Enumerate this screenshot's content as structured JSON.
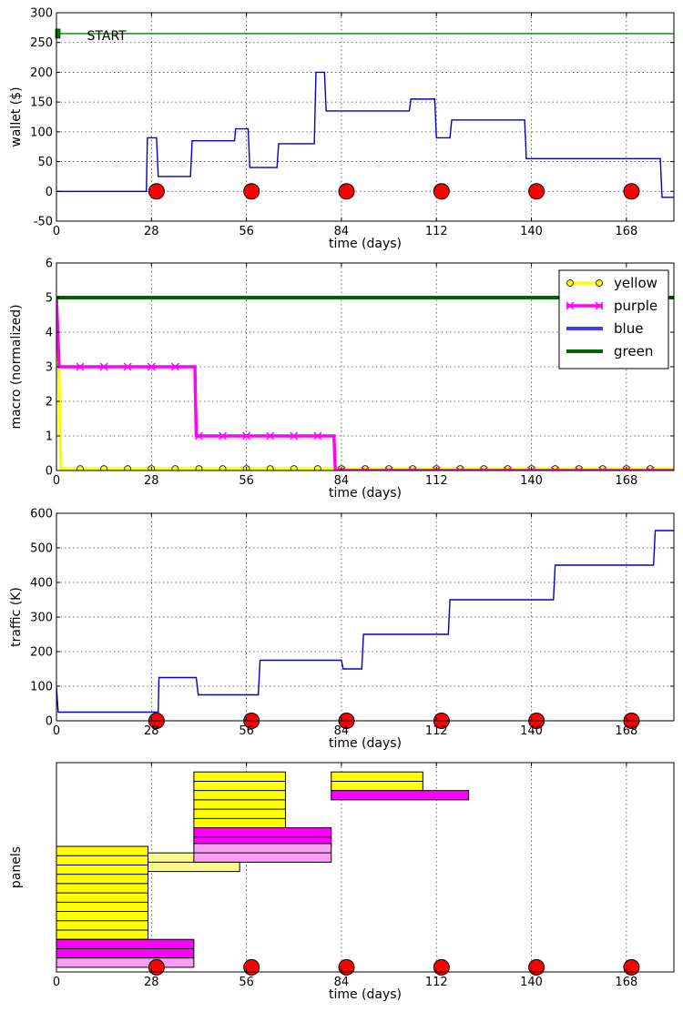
{
  "chart_data": [
    {
      "type": "line",
      "name_key": "wallet",
      "xlabel": "time (days)",
      "ylabel": "wallet ($)",
      "xlim": [
        0,
        182
      ],
      "ylim": [
        -50,
        300
      ],
      "xticks": [
        0,
        28,
        56,
        84,
        112,
        140,
        168
      ],
      "yticks": [
        -50,
        0,
        50,
        100,
        150,
        200,
        250,
        300
      ],
      "grid": true,
      "annotation": {
        "text": "START",
        "x": 9,
        "y": 262
      },
      "start_marker": {
        "x": 0.3,
        "y": 265,
        "color": "#007700"
      },
      "series": [
        {
          "color": "#008000",
          "x": [
            0,
            182
          ],
          "y": [
            265,
            265
          ]
        },
        {
          "color": "#0000cc",
          "x": [
            0,
            26.5,
            26.8,
            29.5,
            30,
            39.5,
            40,
            52.5,
            52.8,
            56.5,
            57,
            62,
            62.5,
            65,
            65.5,
            76,
            76.5,
            79,
            79.5,
            88,
            88.5,
            104,
            104.5,
            111.5,
            112,
            114,
            114.5,
            116,
            116.5,
            138,
            138.5,
            178,
            178.5,
            182
          ],
          "y": [
            0,
            0,
            90,
            90,
            25,
            25,
            85,
            85,
            105,
            105,
            40,
            40,
            40,
            40,
            80,
            80,
            200,
            200,
            135,
            135,
            135,
            135,
            155,
            155,
            90,
            90,
            90,
            90,
            120,
            120,
            55,
            55,
            -10,
            -10
          ]
        }
      ],
      "events": {
        "color": "#ff0000",
        "x": [
          28,
          56,
          84,
          112,
          140,
          168
        ],
        "y": 0
      }
    },
    {
      "type": "line",
      "name_key": "macro",
      "xlabel": "time (days)",
      "ylabel": "macro (normalized)",
      "xlim": [
        0,
        182
      ],
      "ylim": [
        0,
        6
      ],
      "xticks": [
        0,
        28,
        56,
        84,
        112,
        140,
        168
      ],
      "yticks": [
        0,
        1,
        2,
        3,
        4,
        5,
        6
      ],
      "grid": true,
      "legend_position": "top-right",
      "series": [
        {
          "name": "yellow",
          "color": "#ffff00",
          "marker": "circle",
          "x": [
            0,
            0.7,
            1.3,
            182
          ],
          "y": [
            5,
            3,
            0.05,
            0.05
          ],
          "marker_x": [
            7,
            14,
            21,
            28,
            35,
            42,
            49,
            56,
            63,
            70,
            77,
            84,
            91,
            98,
            105,
            112,
            119,
            126,
            133,
            140,
            147,
            154,
            161,
            168,
            175
          ]
        },
        {
          "name": "purple",
          "color": "#ff00ff",
          "marker": "x",
          "x": [
            0,
            0.8,
            40.8,
            41.2,
            81.8,
            82.2,
            182
          ],
          "y": [
            5,
            3,
            3,
            1,
            1,
            0,
            0
          ],
          "marker_x": [
            7,
            14,
            21,
            28,
            35,
            42,
            49,
            56,
            63,
            70,
            77,
            84,
            91,
            98,
            105,
            112,
            119,
            126,
            133,
            140,
            147,
            154,
            161,
            168,
            175
          ]
        },
        {
          "name": "blue",
          "color": "#3c3cff",
          "x": [
            0,
            182
          ],
          "y": [
            5,
            5
          ]
        },
        {
          "name": "green",
          "color": "#006400",
          "x": [
            0,
            182
          ],
          "y": [
            5,
            5
          ]
        }
      ]
    },
    {
      "type": "line",
      "name_key": "traffic",
      "xlabel": "time (days)",
      "ylabel": "traffic (K)",
      "xlim": [
        0,
        182
      ],
      "ylim": [
        0,
        600
      ],
      "xticks": [
        0,
        28,
        56,
        84,
        112,
        140,
        168
      ],
      "yticks": [
        0,
        100,
        200,
        300,
        400,
        500,
        600
      ],
      "grid": true,
      "series": [
        {
          "color": "#0000cc",
          "x": [
            0,
            0.5,
            30,
            30.2,
            41.2,
            41.8,
            59.5,
            60,
            84,
            84.5,
            90,
            90.5,
            115.5,
            116,
            146.5,
            147,
            176,
            176.5,
            182
          ],
          "y": [
            100,
            25,
            25,
            125,
            125,
            75,
            75,
            175,
            175,
            150,
            150,
            250,
            250,
            350,
            350,
            450,
            450,
            550,
            550
          ]
        }
      ],
      "events": {
        "color": "#ff0000",
        "x": [
          28,
          56,
          84,
          112,
          140,
          168
        ],
        "y": 0
      }
    },
    {
      "type": "gantt",
      "name_key": "panels",
      "xlabel": "time (days)",
      "ylabel": "panels",
      "xlim": [
        0,
        182
      ],
      "ylim": [
        -0.5,
        22
      ],
      "xticks": [
        0,
        28,
        56,
        84,
        112,
        140,
        168
      ],
      "grid": true,
      "blocks": [
        {
          "color": "#ffff00",
          "x0": 0,
          "x1": 27,
          "y0": 3,
          "rows": 10
        },
        {
          "color": "#ff00ff",
          "x0": 0,
          "x1": 40.5,
          "y0": 1,
          "rows": 2
        },
        {
          "color": "#f5a0f5",
          "x0": 0,
          "x1": 40.5,
          "y0": 0,
          "rows": 1
        },
        {
          "color": "#f8f890",
          "x0": 27,
          "x1": 54,
          "y0": 10.3,
          "rows": 2
        },
        {
          "color": "#ffff00",
          "x0": 40.5,
          "x1": 67.5,
          "y0": 15,
          "rows": 6
        },
        {
          "color": "#ff00ff",
          "x0": 40.5,
          "x1": 81,
          "y0": 13,
          "rows": 2
        },
        {
          "color": "#f5a0f5",
          "x0": 40.5,
          "x1": 81,
          "y0": 11.3,
          "rows": 2
        },
        {
          "color": "#ffff00",
          "x0": 81,
          "x1": 108,
          "y0": 19,
          "rows": 2
        },
        {
          "color": "#ff00ff",
          "x0": 81,
          "x1": 121.5,
          "y0": 18,
          "rows": 1
        }
      ],
      "events": {
        "color": "#ff0000",
        "x": [
          28,
          56,
          84,
          112,
          140,
          168
        ],
        "y": 0
      }
    }
  ]
}
